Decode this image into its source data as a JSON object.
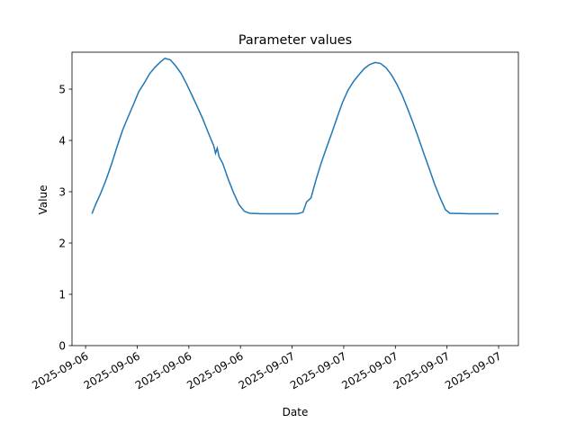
{
  "chart_data": {
    "type": "line",
    "title": "Parameter values",
    "xlabel": "Date",
    "ylabel": "Value",
    "x": [
      12.37,
      12.58,
      12.89,
      13.21,
      13.52,
      13.83,
      14.15,
      14.46,
      14.78,
      15.09,
      15.41,
      15.72,
      16.04,
      16.35,
      16.61,
      16.93,
      17.24,
      17.56,
      17.87,
      18.18,
      18.5,
      18.81,
      19.13,
      19.44,
      19.55,
      19.65,
      19.76,
      19.97,
      20.28,
      20.6,
      20.91,
      21.22,
      21.54,
      22.22,
      23.27,
      24.32,
      24.63,
      24.84,
      25.1,
      25.36,
      25.68,
      25.99,
      26.31,
      26.62,
      26.94,
      27.25,
      27.57,
      27.88,
      28.19,
      28.51,
      28.82,
      29.14,
      29.45,
      29.77,
      30.08,
      30.4,
      30.71,
      31.02,
      31.34,
      31.65,
      31.97,
      32.28,
      32.6,
      32.91,
      33.17,
      34.27,
      36
    ],
    "series": [
      {
        "name": "Value",
        "color": "#1f77b4",
        "values": [
          2.57,
          2.75,
          2.98,
          3.25,
          3.55,
          3.88,
          4.2,
          4.45,
          4.7,
          4.95,
          5.12,
          5.3,
          5.43,
          5.53,
          5.6,
          5.57,
          5.45,
          5.3,
          5.1,
          4.88,
          4.65,
          4.42,
          4.15,
          3.9,
          3.75,
          3.85,
          3.68,
          3.55,
          3.25,
          2.98,
          2.75,
          2.62,
          2.58,
          2.57,
          2.57,
          2.57,
          2.6,
          2.8,
          2.88,
          3.2,
          3.55,
          3.85,
          4.15,
          4.45,
          4.75,
          4.98,
          5.15,
          5.28,
          5.4,
          5.48,
          5.52,
          5.5,
          5.42,
          5.28,
          5.1,
          4.88,
          4.62,
          4.35,
          4.05,
          3.75,
          3.45,
          3.15,
          2.88,
          2.65,
          2.58,
          2.57,
          2.57
        ]
      }
    ],
    "xlim": [
      11.21,
      37.15
    ],
    "xticks": [
      {
        "value": 12,
        "label": "2025-09-06"
      },
      {
        "value": 15,
        "label": "2025-09-06"
      },
      {
        "value": 18,
        "label": "2025-09-06"
      },
      {
        "value": 21,
        "label": "2025-09-06"
      },
      {
        "value": 24,
        "label": "2025-09-07"
      },
      {
        "value": 27,
        "label": "2025-09-07"
      },
      {
        "value": 30,
        "label": "2025-09-07"
      },
      {
        "value": 33,
        "label": "2025-09-07"
      },
      {
        "value": 36,
        "label": "2025-09-07"
      }
    ],
    "ylim": [
      0,
      5.72
    ],
    "yticks": [
      0,
      1,
      2,
      3,
      4,
      5
    ],
    "grid": false
  }
}
